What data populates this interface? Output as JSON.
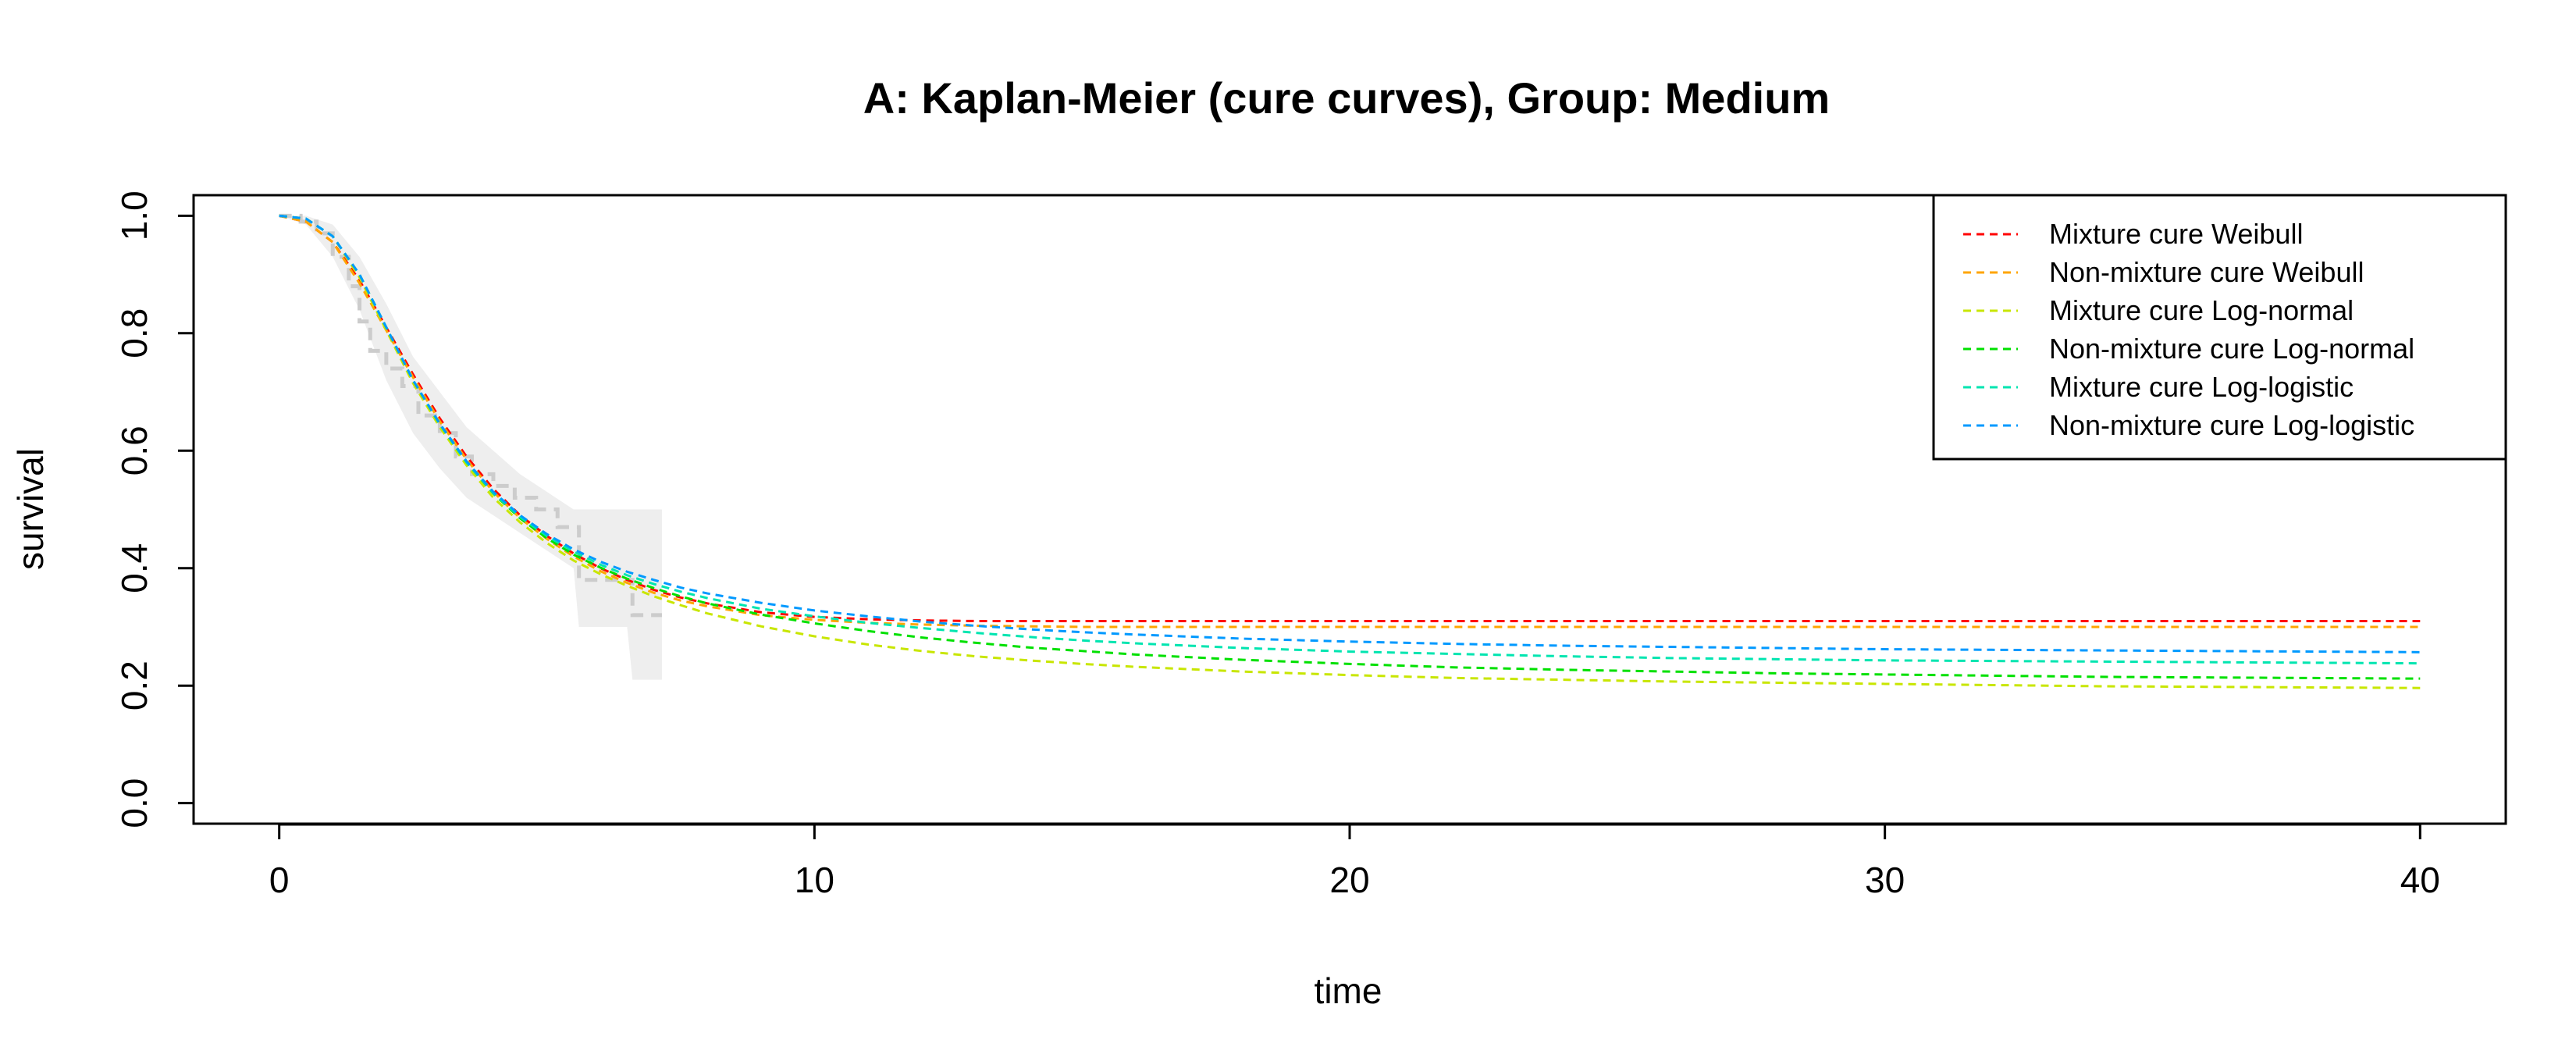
{
  "chart_data": {
    "type": "line",
    "title": "A: Kaplan-Meier (cure curves), Group: Medium",
    "xlabel": "time",
    "ylabel": "survival",
    "xlim": [
      -1.6,
      41.6
    ],
    "ylim": [
      -0.035,
      1.035
    ],
    "x_ticks": [
      0,
      10,
      20,
      30,
      40
    ],
    "y_ticks": [
      0.0,
      0.2,
      0.4,
      0.6,
      0.8,
      1.0
    ],
    "x_tick_labels": [
      "0",
      "10",
      "20",
      "30",
      "40"
    ],
    "y_tick_labels": [
      "0.0",
      "0.2",
      "0.4",
      "0.6",
      "0.8",
      "1.0"
    ],
    "grid": false,
    "legend_position": "top-right",
    "km_confidence_band": {
      "color": "#eeeeee",
      "x": [
        0,
        0.5,
        1.0,
        1.5,
        2.0,
        2.5,
        3.0,
        3.5,
        4.0,
        4.5,
        5.0,
        5.5,
        5.6,
        6.5,
        6.6,
        7.15
      ],
      "upper": [
        1.0,
        1.0,
        0.985,
        0.93,
        0.85,
        0.76,
        0.7,
        0.64,
        0.6,
        0.56,
        0.53,
        0.5,
        0.5,
        0.5,
        0.5,
        0.5
      ],
      "lower": [
        1.0,
        0.985,
        0.93,
        0.84,
        0.72,
        0.63,
        0.57,
        0.52,
        0.49,
        0.46,
        0.43,
        0.4,
        0.3,
        0.3,
        0.21,
        0.21
      ]
    },
    "km_curve": {
      "color": "#cccccc",
      "x": [
        0,
        0.4,
        0.4,
        0.7,
        0.7,
        1.0,
        1.0,
        1.3,
        1.3,
        1.5,
        1.5,
        1.7,
        1.7,
        2.0,
        2.0,
        2.3,
        2.3,
        2.6,
        2.6,
        3.0,
        3.0,
        3.3,
        3.3,
        3.6,
        3.6,
        4.0,
        4.0,
        4.4,
        4.4,
        4.8,
        4.8,
        5.2,
        5.2,
        5.6,
        5.6,
        6.6,
        6.6,
        7.15
      ],
      "y": [
        1.0,
        1.0,
        0.99,
        0.99,
        0.97,
        0.97,
        0.93,
        0.93,
        0.88,
        0.88,
        0.82,
        0.82,
        0.77,
        0.77,
        0.74,
        0.74,
        0.71,
        0.71,
        0.66,
        0.66,
        0.63,
        0.63,
        0.59,
        0.59,
        0.56,
        0.56,
        0.54,
        0.54,
        0.52,
        0.52,
        0.5,
        0.5,
        0.47,
        0.47,
        0.38,
        0.38,
        0.32,
        0.32
      ]
    },
    "x": [
      0,
      0.5,
      1,
      1.5,
      2,
      2.5,
      3,
      3.5,
      4,
      4.5,
      5,
      5.5,
      6,
      6.5,
      7,
      7.5,
      8,
      9,
      10,
      11,
      12,
      13,
      14,
      15,
      16,
      18,
      20,
      22,
      24,
      26,
      28,
      30,
      32,
      34,
      36,
      38,
      40
    ],
    "series": [
      {
        "name": "Mixture cure Weibull",
        "color": "#ff0000",
        "values": [
          1.0,
          0.99,
          0.955,
          0.89,
          0.81,
          0.73,
          0.655,
          0.59,
          0.535,
          0.49,
          0.455,
          0.425,
          0.4,
          0.38,
          0.363,
          0.35,
          0.34,
          0.325,
          0.317,
          0.313,
          0.311,
          0.31,
          0.31,
          0.31,
          0.31,
          0.31,
          0.31,
          0.31,
          0.31,
          0.31,
          0.31,
          0.31,
          0.31,
          0.31,
          0.31,
          0.31,
          0.31
        ]
      },
      {
        "name": "Non-mixture cure Weibull",
        "color": "#ffa500",
        "values": [
          1.0,
          0.99,
          0.955,
          0.885,
          0.805,
          0.725,
          0.65,
          0.585,
          0.53,
          0.485,
          0.45,
          0.42,
          0.395,
          0.375,
          0.358,
          0.345,
          0.335,
          0.32,
          0.312,
          0.307,
          0.304,
          0.302,
          0.301,
          0.3,
          0.3,
          0.3,
          0.3,
          0.3,
          0.3,
          0.3,
          0.3,
          0.3,
          0.3,
          0.3,
          0.3,
          0.3,
          0.3
        ]
      },
      {
        "name": "Mixture cure Log-normal",
        "color": "#c8e600",
        "values": [
          1.0,
          0.995,
          0.965,
          0.895,
          0.805,
          0.715,
          0.64,
          0.575,
          0.52,
          0.478,
          0.443,
          0.413,
          0.39,
          0.37,
          0.352,
          0.337,
          0.323,
          0.301,
          0.284,
          0.27,
          0.259,
          0.25,
          0.243,
          0.237,
          0.232,
          0.224,
          0.218,
          0.213,
          0.21,
          0.207,
          0.205,
          0.203,
          0.201,
          0.199,
          0.198,
          0.197,
          0.196
        ]
      },
      {
        "name": "Non-mixture cure Log-normal",
        "color": "#00e000",
        "values": [
          1.0,
          0.995,
          0.965,
          0.9,
          0.81,
          0.72,
          0.645,
          0.58,
          0.527,
          0.485,
          0.451,
          0.423,
          0.401,
          0.382,
          0.366,
          0.352,
          0.34,
          0.321,
          0.306,
          0.293,
          0.282,
          0.273,
          0.265,
          0.259,
          0.253,
          0.244,
          0.237,
          0.231,
          0.227,
          0.224,
          0.221,
          0.219,
          0.217,
          0.215,
          0.214,
          0.213,
          0.212
        ]
      },
      {
        "name": "Mixture cure Log-logistic",
        "color": "#00e5b0",
        "values": [
          1.0,
          0.995,
          0.965,
          0.9,
          0.81,
          0.72,
          0.645,
          0.58,
          0.528,
          0.487,
          0.455,
          0.428,
          0.406,
          0.388,
          0.373,
          0.36,
          0.349,
          0.331,
          0.318,
          0.307,
          0.298,
          0.29,
          0.283,
          0.277,
          0.272,
          0.264,
          0.258,
          0.254,
          0.25,
          0.247,
          0.245,
          0.243,
          0.242,
          0.241,
          0.24,
          0.239,
          0.238
        ]
      },
      {
        "name": "Non-mixture cure Log-logistic",
        "color": "#0099ff",
        "values": [
          1.0,
          0.995,
          0.965,
          0.9,
          0.81,
          0.72,
          0.646,
          0.582,
          0.53,
          0.49,
          0.458,
          0.432,
          0.411,
          0.394,
          0.38,
          0.367,
          0.357,
          0.341,
          0.328,
          0.318,
          0.309,
          0.302,
          0.296,
          0.291,
          0.287,
          0.28,
          0.275,
          0.271,
          0.268,
          0.266,
          0.264,
          0.262,
          0.261,
          0.26,
          0.259,
          0.258,
          0.257
        ]
      }
    ]
  }
}
